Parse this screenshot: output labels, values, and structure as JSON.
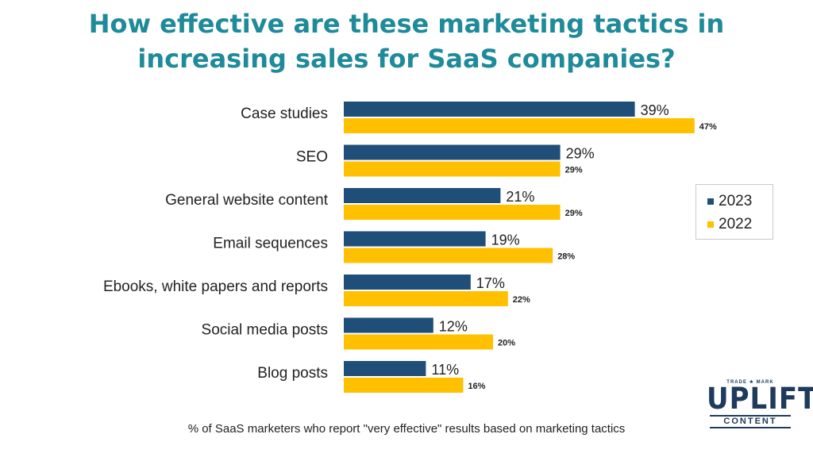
{
  "title_line1": "How effective are these marketing tactics in",
  "title_line2": "increasing sales for SaaS companies?",
  "footnote": "% of SaaS marketers who report \"very effective\" results based on marketing tactics",
  "logo": {
    "trademark": "TRADE ★ MARK",
    "word": "UPLIFT",
    "sub": "CONTENT"
  },
  "colors": {
    "title": "#1f8a99",
    "series_2023": "#1f4e79",
    "series_2022": "#ffc000"
  },
  "chart_data": {
    "type": "bar",
    "orientation": "horizontal",
    "categories": [
      "Case studies",
      "SEO",
      "General website content",
      "Email sequences",
      "Ebooks, white papers and reports",
      "Social media posts",
      "Blog posts"
    ],
    "series": [
      {
        "name": "2023",
        "values": [
          39,
          29,
          21,
          19,
          17,
          12,
          11
        ],
        "labels": [
          "39%",
          "29%",
          "21%",
          "19%",
          "17%",
          "12%",
          "11%"
        ]
      },
      {
        "name": "2022",
        "values": [
          47,
          29,
          29,
          28,
          22,
          20,
          16
        ],
        "labels": [
          "47%",
          "29%",
          "29%",
          "28%",
          "22%",
          "20%",
          "16%"
        ]
      }
    ],
    "unit": "%",
    "xlim": [
      0,
      47
    ],
    "grid": false,
    "legend_position": "right"
  }
}
